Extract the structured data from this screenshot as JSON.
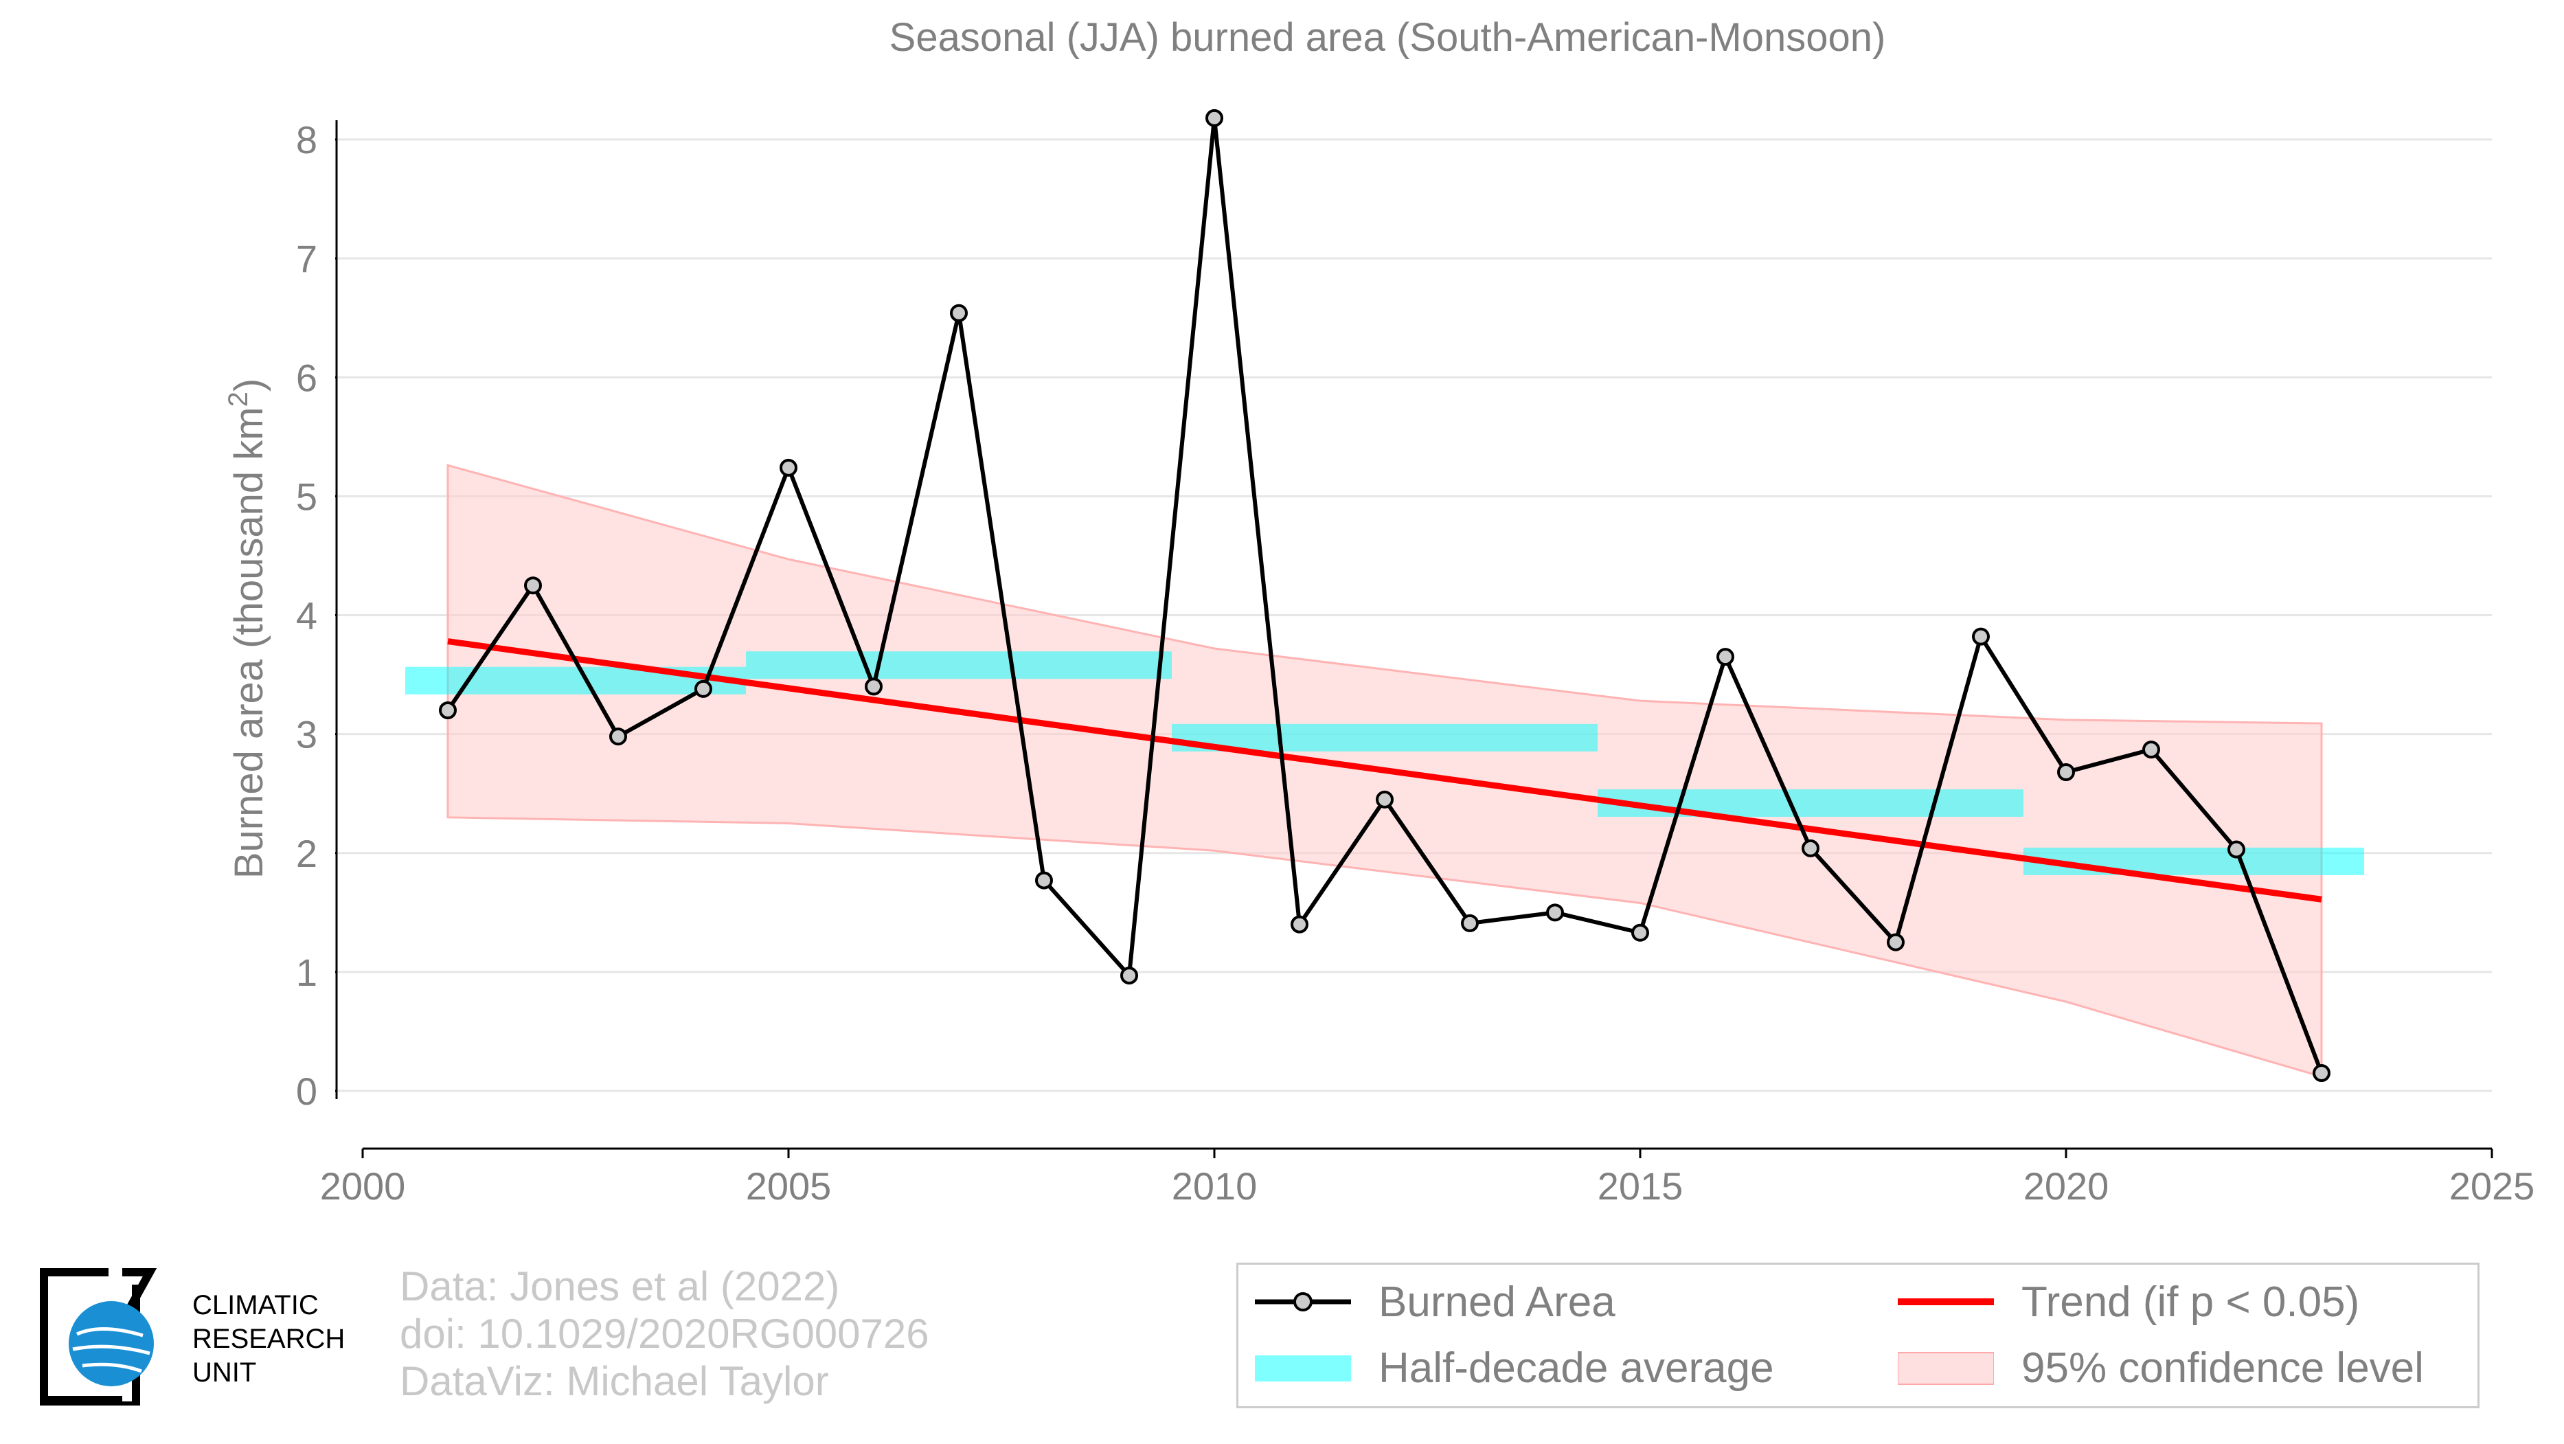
{
  "chart_data": {
    "type": "line",
    "title": "Seasonal (JJA) burned area (South-American-Monsoon)",
    "ylabel": "Burned area (thousand km",
    "ylabel_sup": "2",
    "ylabel_close": ")",
    "xlabel": "",
    "xlim": [
      2000,
      2025
    ],
    "ylim": [
      -0.5,
      8.6
    ],
    "x_ticks": [
      2000,
      2005,
      2010,
      2015,
      2020,
      2025
    ],
    "y_ticks": [
      0,
      1,
      2,
      3,
      4,
      5,
      6,
      7,
      8
    ],
    "grid": "horizontal",
    "legend_position": "bottom-right",
    "series": [
      {
        "name": "Burned Area",
        "color": "#000000",
        "marker_fill": "#cccccc",
        "x": [
          2001,
          2002,
          2003,
          2004,
          2005,
          2006,
          2007,
          2008,
          2009,
          2010,
          2011,
          2012,
          2013,
          2014,
          2015,
          2016,
          2017,
          2018,
          2019,
          2020,
          2021,
          2022,
          2023
        ],
        "y": [
          3.2,
          4.25,
          2.98,
          3.38,
          5.24,
          3.4,
          6.54,
          1.77,
          0.97,
          8.18,
          1.4,
          2.45,
          1.41,
          1.5,
          1.33,
          3.65,
          2.04,
          1.25,
          3.82,
          2.68,
          2.87,
          2.03,
          0.15
        ]
      }
    ],
    "half_decade_average": {
      "name": "Half-decade average",
      "color": "#00ffff",
      "segments": [
        {
          "x0": 2000.5,
          "x1": 2004.5,
          "y": 3.45
        },
        {
          "x0": 2004.5,
          "x1": 2009.5,
          "y": 3.58
        },
        {
          "x0": 2009.5,
          "x1": 2014.5,
          "y": 2.97
        },
        {
          "x0": 2014.5,
          "x1": 2019.5,
          "y": 2.42
        },
        {
          "x0": 2019.5,
          "x1": 2023.5,
          "y": 1.93
        }
      ]
    },
    "trend": {
      "name": "Trend (if p < 0.05)",
      "color": "#ff0000",
      "x": [
        2001,
        2023
      ],
      "y": [
        3.78,
        1.61
      ]
    },
    "confidence": {
      "name": "95% confidence level",
      "color": "#ffcccc",
      "x": [
        2001,
        2005,
        2010,
        2015,
        2020,
        2023
      ],
      "upper": [
        5.26,
        4.47,
        3.72,
        3.28,
        3.12,
        3.09
      ],
      "lower": [
        2.3,
        2.25,
        2.02,
        1.58,
        0.75,
        0.12
      ]
    }
  },
  "credits": {
    "line1": "Data: Jones et al (2022)",
    "line2": "doi: 10.1029/2020RG000726",
    "line3": "DataViz: Michael Taylor"
  },
  "logo": {
    "line1": "CLIMATIC",
    "line2": "RESEARCH",
    "line3": "UNIT"
  },
  "legend": {
    "burned_area": "Burned Area",
    "half_decade": "Half-decade average",
    "trend": "Trend (if p < 0.05)",
    "confidence": "95% confidence level"
  }
}
